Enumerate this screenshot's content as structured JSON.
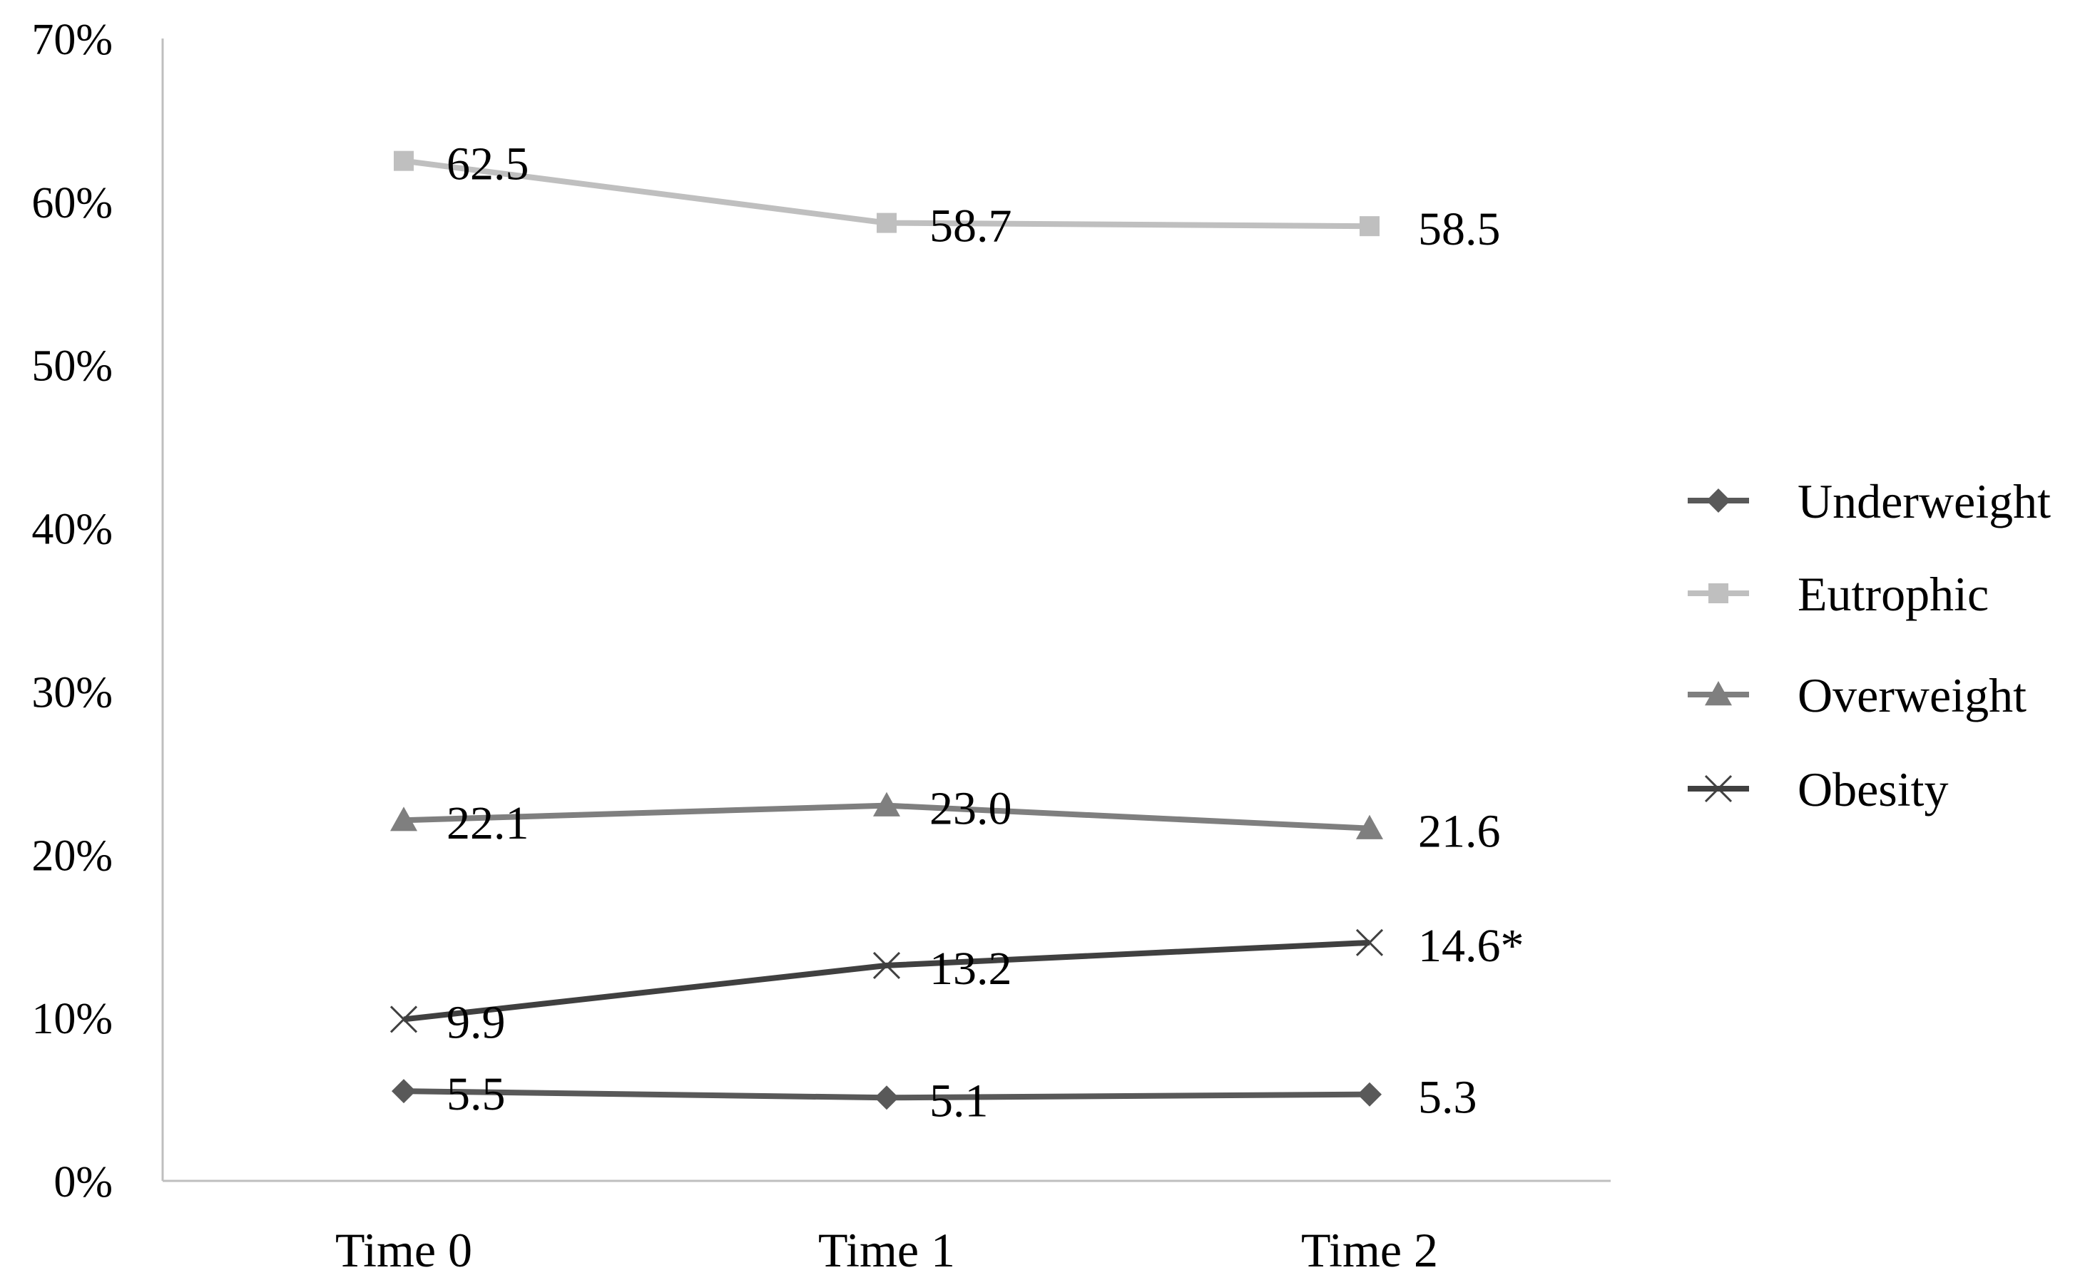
{
  "chart_data": {
    "type": "line",
    "categories": [
      "Time 0",
      "Time 1",
      "Time 2"
    ],
    "ylim": [
      0,
      70
    ],
    "yticks": [
      0,
      10,
      20,
      30,
      40,
      50,
      60,
      70
    ],
    "ytick_labels": [
      "0%",
      "10%",
      "20%",
      "30%",
      "40%",
      "50%",
      "60%",
      "70%"
    ],
    "grid": false,
    "legend_position": "right",
    "series": [
      {
        "name": "Underweight",
        "values": [
          5.5,
          5.1,
          5.3
        ],
        "labels": [
          "5.5",
          "5.1",
          "5.3"
        ],
        "color": "#595959",
        "marker": "diamond"
      },
      {
        "name": "Eutrophic",
        "values": [
          62.5,
          58.7,
          58.5
        ],
        "labels": [
          "62.5",
          "58.7",
          "58.5"
        ],
        "color": "#bfbfbf",
        "marker": "square"
      },
      {
        "name": "Overweight",
        "values": [
          22.1,
          23.0,
          21.6
        ],
        "labels": [
          "22.1",
          "23.0",
          "21.6"
        ],
        "color": "#7f7f7f",
        "marker": "triangle"
      },
      {
        "name": "Obesity",
        "values": [
          9.9,
          13.2,
          14.6
        ],
        "labels": [
          "9.9",
          "13.2",
          "14.6*"
        ],
        "color": "#404040",
        "marker": "x"
      }
    ]
  }
}
